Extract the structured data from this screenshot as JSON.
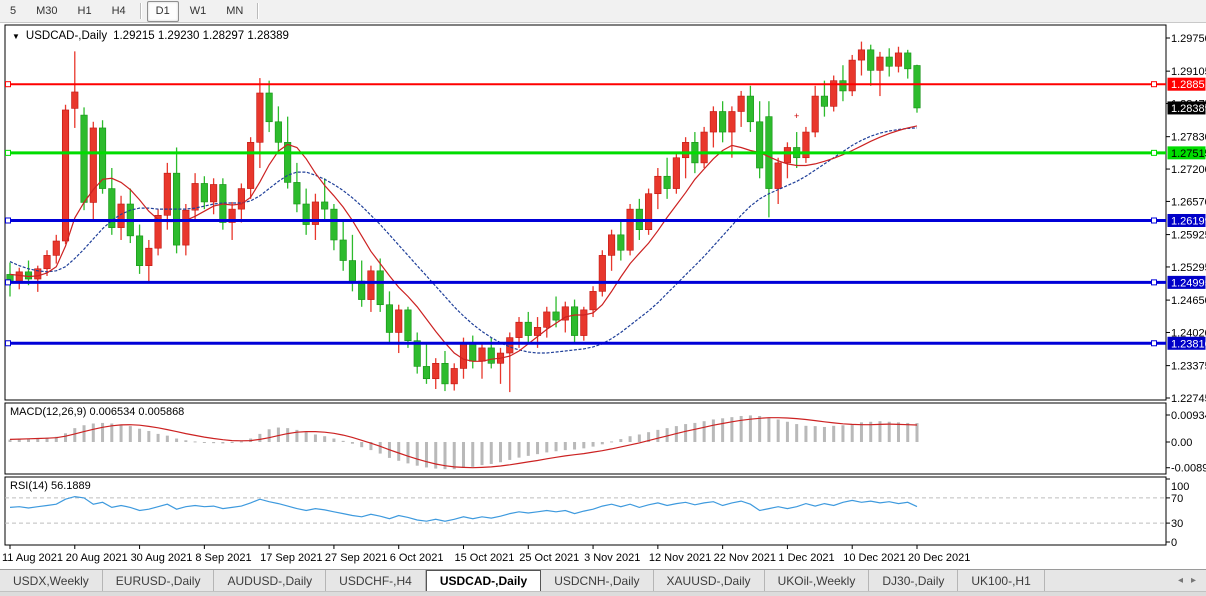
{
  "toolbar": {
    "timeframes": [
      {
        "label": "5"
      },
      {
        "label": "M30"
      },
      {
        "label": "H1"
      },
      {
        "label": "H4"
      },
      {
        "label": "D1"
      },
      {
        "label": "W1"
      },
      {
        "label": "MN"
      }
    ],
    "active": "D1"
  },
  "chart": {
    "symbol_label": "USDCAD-,Daily",
    "ohlc_label": "1.29215 1.29230 1.28297 1.28389",
    "dropdown_glyph": "▼"
  },
  "indicators": {
    "macd_name": "MACD(12,26,9)",
    "macd_values": "0.006534 0.005868",
    "rsi_name": "RSI(14)",
    "rsi_value": "56.1889"
  },
  "tabs": {
    "items": [
      "USDX,Weekly",
      "EURUSD-,Daily",
      "AUDUSD-,Daily",
      "USDCHF-,H4",
      "USDCAD-,Daily",
      "USDCNH-,Daily",
      "XAUUSD-,Daily",
      "UKOil-,Weekly",
      "DJ30-,Daily",
      "UK100-,H1"
    ],
    "active_index": 4,
    "scroll_left_glyph": "◂",
    "scroll_right_glyph": "▸"
  },
  "chart_data": {
    "type": "candlestick",
    "symbol": "USDCAD",
    "timeframe": "Daily",
    "colors": {
      "bull": "#e8372c",
      "bull_stroke": "#c01510",
      "bear": "#2dbb2d",
      "bear_stroke": "#149114",
      "ma_fast": "#cc2222",
      "ma_slow": "#1f3f99",
      "macd_hist": "#b9b9b9",
      "macd_signal": "#cc2222",
      "rsi_line": "#3e9ade",
      "level_dash": "#bdbdbd",
      "panel_border": "#000000"
    },
    "price_axis": {
      "labels": [
        "1.29750",
        "1.29105",
        "1.28475",
        "1.27830",
        "1.27200",
        "1.26570",
        "1.25925",
        "1.25295",
        "1.24650",
        "1.24020",
        "1.23375",
        "1.22745"
      ],
      "values": [
        1.2975,
        1.29105,
        1.28475,
        1.2783,
        1.272,
        1.2657,
        1.25925,
        1.25295,
        1.2465,
        1.2402,
        1.23375,
        1.22745
      ]
    },
    "hlines": [
      {
        "price": 1.28851,
        "label": "1.28851",
        "color": "#ff0000",
        "bg": "#ff0000",
        "fg": "#ffffff",
        "width": 2
      },
      {
        "price": 1.27515,
        "label": "1.27515",
        "color": "#00dd00",
        "bg": "#00dd00",
        "fg": "#000000",
        "width": 3
      },
      {
        "price": 1.26199,
        "label": "1.26199",
        "color": "#0000d8",
        "bg": "#0000c8",
        "fg": "#ffffff",
        "width": 3
      },
      {
        "price": 1.24995,
        "label": "1.24995",
        "color": "#0000d8",
        "bg": "#0000c8",
        "fg": "#ffffff",
        "width": 3
      },
      {
        "price": 1.2381,
        "label": "1.23810",
        "color": "#0000d8",
        "bg": "#0000c8",
        "fg": "#ffffff",
        "width": 3
      }
    ],
    "current_price": {
      "label": "1.28389",
      "price": 1.28389,
      "bg": "#000000",
      "fg": "#ffffff"
    },
    "marker": {
      "glyph": "+",
      "candle_index": 85,
      "price": 1.2823,
      "color": "#cc0000"
    },
    "dates": {
      "labels": [
        "11 Aug 2021",
        "20 Aug 2021",
        "30 Aug 2021",
        "8 Sep 2021",
        "17 Sep 2021",
        "27 Sep 2021",
        "6 Oct 2021",
        "15 Oct 2021",
        "25 Oct 2021",
        "3 Nov 2021",
        "12 Nov 2021",
        "22 Nov 2021",
        "1 Dec 2021",
        "10 Dec 2021",
        "20 Dec 2021"
      ],
      "tick_interval": 7
    },
    "candles": [
      [
        1.2515,
        1.2538,
        1.2472,
        1.2502
      ],
      [
        1.2502,
        1.2528,
        1.2486,
        1.252
      ],
      [
        1.252,
        1.2542,
        1.2494,
        1.2506
      ],
      [
        1.2506,
        1.2532,
        1.2481,
        1.2526
      ],
      [
        1.2526,
        1.2562,
        1.2512,
        1.2552
      ],
      [
        1.2552,
        1.2592,
        1.2536,
        1.258
      ],
      [
        1.258,
        1.2845,
        1.2574,
        1.2835
      ],
      [
        1.2838,
        1.2949,
        1.28,
        1.287
      ],
      [
        1.2825,
        1.284,
        1.264,
        1.2655
      ],
      [
        1.2655,
        1.2812,
        1.2622,
        1.28
      ],
      [
        1.28,
        1.2815,
        1.2672,
        1.2682
      ],
      [
        1.2682,
        1.2722,
        1.2592,
        1.2606
      ],
      [
        1.2606,
        1.2668,
        1.2582,
        1.2652
      ],
      [
        1.2652,
        1.2682,
        1.2576,
        1.259
      ],
      [
        1.259,
        1.2612,
        1.2516,
        1.2532
      ],
      [
        1.2532,
        1.2582,
        1.2502,
        1.2566
      ],
      [
        1.2566,
        1.2642,
        1.2552,
        1.263
      ],
      [
        1.263,
        1.2732,
        1.2602,
        1.2712
      ],
      [
        1.2712,
        1.2762,
        1.2556,
        1.2572
      ],
      [
        1.2572,
        1.2652,
        1.2552,
        1.264
      ],
      [
        1.264,
        1.2712,
        1.2622,
        1.2692
      ],
      [
        1.2692,
        1.2706,
        1.2642,
        1.2656
      ],
      [
        1.2656,
        1.2702,
        1.2632,
        1.269
      ],
      [
        1.269,
        1.2702,
        1.2602,
        1.2616
      ],
      [
        1.2616,
        1.2656,
        1.2582,
        1.2642
      ],
      [
        1.2642,
        1.2692,
        1.2616,
        1.2682
      ],
      [
        1.2682,
        1.2782,
        1.2662,
        1.2772
      ],
      [
        1.2772,
        1.2897,
        1.2722,
        1.2868
      ],
      [
        1.2868,
        1.2892,
        1.2792,
        1.2812
      ],
      [
        1.2812,
        1.2842,
        1.2752,
        1.2772
      ],
      [
        1.2772,
        1.2822,
        1.2682,
        1.2694
      ],
      [
        1.2694,
        1.2732,
        1.2636,
        1.2652
      ],
      [
        1.2652,
        1.2682,
        1.2592,
        1.2612
      ],
      [
        1.2612,
        1.2672,
        1.2582,
        1.2656
      ],
      [
        1.2656,
        1.2702,
        1.2622,
        1.2642
      ],
      [
        1.2642,
        1.2652,
        1.2562,
        1.2582
      ],
      [
        1.2582,
        1.2622,
        1.2522,
        1.2542
      ],
      [
        1.2542,
        1.2592,
        1.2482,
        1.2502
      ],
      [
        1.2502,
        1.2542,
        1.2452,
        1.2466
      ],
      [
        1.2466,
        1.2532,
        1.2442,
        1.2522
      ],
      [
        1.2522,
        1.2546,
        1.2442,
        1.2456
      ],
      [
        1.2456,
        1.2482,
        1.2382,
        1.2402
      ],
      [
        1.2402,
        1.2456,
        1.2362,
        1.2446
      ],
      [
        1.2446,
        1.2452,
        1.2372,
        1.2386
      ],
      [
        1.2386,
        1.2402,
        1.2322,
        1.2336
      ],
      [
        1.2336,
        1.2382,
        1.2302,
        1.2312
      ],
      [
        1.2312,
        1.2352,
        1.2292,
        1.2342
      ],
      [
        1.2342,
        1.2366,
        1.2288,
        1.2302
      ],
      [
        1.2302,
        1.2342,
        1.2289,
        1.2332
      ],
      [
        1.2332,
        1.2392,
        1.2312,
        1.2382
      ],
      [
        1.2382,
        1.2396,
        1.2332,
        1.2346
      ],
      [
        1.2346,
        1.2382,
        1.2312,
        1.2372
      ],
      [
        1.2372,
        1.2392,
        1.2332,
        1.2342
      ],
      [
        1.2342,
        1.2372,
        1.2302,
        1.2362
      ],
      [
        1.2362,
        1.2402,
        1.2286,
        1.2392
      ],
      [
        1.2392,
        1.2432,
        1.2372,
        1.2422
      ],
      [
        1.2422,
        1.2442,
        1.2382,
        1.2396
      ],
      [
        1.2396,
        1.2432,
        1.2372,
        1.2412
      ],
      [
        1.2412,
        1.2452,
        1.2392,
        1.2442
      ],
      [
        1.2442,
        1.2472,
        1.2412,
        1.2426
      ],
      [
        1.2426,
        1.2462,
        1.2402,
        1.2452
      ],
      [
        1.2452,
        1.2466,
        1.2382,
        1.2396
      ],
      [
        1.2396,
        1.2452,
        1.2386,
        1.2446
      ],
      [
        1.2446,
        1.2492,
        1.2432,
        1.2482
      ],
      [
        1.2482,
        1.2562,
        1.2472,
        1.2552
      ],
      [
        1.2552,
        1.2602,
        1.2522,
        1.2592
      ],
      [
        1.2592,
        1.2622,
        1.2542,
        1.2562
      ],
      [
        1.2562,
        1.2652,
        1.2552,
        1.2642
      ],
      [
        1.2642,
        1.2662,
        1.2582,
        1.2602
      ],
      [
        1.2602,
        1.2682,
        1.2592,
        1.2672
      ],
      [
        1.2672,
        1.2722,
        1.2642,
        1.2706
      ],
      [
        1.2706,
        1.2742,
        1.2662,
        1.2682
      ],
      [
        1.2682,
        1.2752,
        1.2672,
        1.2742
      ],
      [
        1.2742,
        1.2782,
        1.2702,
        1.2772
      ],
      [
        1.2772,
        1.2792,
        1.2712,
        1.2732
      ],
      [
        1.2732,
        1.2802,
        1.2722,
        1.2792
      ],
      [
        1.2792,
        1.2842,
        1.2762,
        1.2832
      ],
      [
        1.2832,
        1.2852,
        1.2772,
        1.2792
      ],
      [
        1.2792,
        1.2842,
        1.2742,
        1.2832
      ],
      [
        1.2832,
        1.2872,
        1.2802,
        1.2862
      ],
      [
        1.2862,
        1.2882,
        1.2792,
        1.2812
      ],
      [
        1.2812,
        1.2852,
        1.2702,
        1.2722
      ],
      [
        1.2822,
        1.2852,
        1.2626,
        1.2682
      ],
      [
        1.2682,
        1.2742,
        1.2652,
        1.2732
      ],
      [
        1.2732,
        1.2772,
        1.2702,
        1.2762
      ],
      [
        1.2762,
        1.2792,
        1.2722,
        1.2742
      ],
      [
        1.2742,
        1.2802,
        1.2732,
        1.2792
      ],
      [
        1.2792,
        1.2882,
        1.2782,
        1.2862
      ],
      [
        1.2862,
        1.2892,
        1.2822,
        1.2842
      ],
      [
        1.2842,
        1.2902,
        1.2832,
        1.2892
      ],
      [
        1.2892,
        1.2922,
        1.2852,
        1.2872
      ],
      [
        1.2872,
        1.2942,
        1.2862,
        1.2932
      ],
      [
        1.2932,
        1.2968,
        1.2902,
        1.2952
      ],
      [
        1.2952,
        1.2962,
        1.2882,
        1.2912
      ],
      [
        1.2912,
        1.2948,
        1.2862,
        1.2938
      ],
      [
        1.2938,
        1.2955,
        1.29,
        1.292
      ],
      [
        1.292,
        1.2958,
        1.2908,
        1.2946
      ],
      [
        1.2946,
        1.2952,
        1.2896,
        1.2915
      ],
      [
        1.29215,
        1.2923,
        1.28297,
        1.28389
      ]
    ],
    "ma_fast": [
      1.2515,
      1.2513,
      1.2511,
      1.2512,
      1.2518,
      1.253,
      1.257,
      1.2625,
      1.2655,
      1.268,
      1.27,
      1.2702,
      1.2694,
      1.268,
      1.266,
      1.2638,
      1.2622,
      1.2618,
      1.2618,
      1.262,
      1.2628,
      1.2638,
      1.2648,
      1.2652,
      1.265,
      1.2652,
      1.2665,
      1.2695,
      1.2728,
      1.2755,
      1.2768,
      1.2762,
      1.274,
      1.2712,
      1.2688,
      1.2668,
      1.2646,
      1.262,
      1.259,
      1.256,
      1.2536,
      1.2512,
      1.249,
      1.2472,
      1.2452,
      1.2428,
      1.2404,
      1.2382,
      1.2362,
      1.235,
      1.2346,
      1.2346,
      1.235,
      1.2352,
      1.2356,
      1.2366,
      1.238,
      1.2394,
      1.2408,
      1.242,
      1.2432,
      1.2436,
      1.2436,
      1.244,
      1.2456,
      1.2482,
      1.251,
      1.2536,
      1.2556,
      1.2576,
      1.26,
      1.2626,
      1.265,
      1.2674,
      1.27,
      1.272,
      1.274,
      1.2756,
      1.2766,
      1.2762,
      1.2756,
      1.2752,
      1.2744,
      1.2736,
      1.273,
      1.2727,
      1.2727,
      1.273,
      1.2735,
      1.2741,
      1.2748,
      1.2756,
      1.2765,
      1.2774,
      1.2782,
      1.2789,
      1.2795,
      1.28,
      1.2804
    ],
    "ma_slow": [
      1.254,
      1.2532,
      1.2526,
      1.2522,
      1.252,
      1.2522,
      1.253,
      1.2546,
      1.2564,
      1.2584,
      1.2604,
      1.262,
      1.2632,
      1.264,
      1.2644,
      1.2644,
      1.2642,
      1.2642,
      1.2642,
      1.2642,
      1.2644,
      1.2648,
      1.2652,
      1.2654,
      1.2654,
      1.2654,
      1.2658,
      1.2668,
      1.2682,
      1.2696,
      1.2708,
      1.2714,
      1.2714,
      1.2708,
      1.27,
      1.269,
      1.2678,
      1.2664,
      1.2648,
      1.263,
      1.2612,
      1.2592,
      1.2572,
      1.2552,
      1.2532,
      1.2512,
      1.2492,
      1.2472,
      1.2452,
      1.2434,
      1.2418,
      1.2404,
      1.2392,
      1.2382,
      1.2374,
      1.2368,
      1.2364,
      1.2362,
      1.2362,
      1.2364,
      1.2366,
      1.2368,
      1.237,
      1.2374,
      1.238,
      1.239,
      1.2402,
      1.2416,
      1.243,
      1.2444,
      1.246,
      1.2478,
      1.2496,
      1.2514,
      1.2532,
      1.255,
      1.257,
      1.259,
      1.261,
      1.263,
      1.2648,
      1.2662,
      1.2672,
      1.268,
      1.2688,
      1.2696,
      1.2706,
      1.2718,
      1.273,
      1.2742,
      1.2754,
      1.2766,
      1.2776,
      1.2784,
      1.279,
      1.2794,
      1.2797,
      1.2799,
      1.28
    ],
    "macd": {
      "axis_labels": [
        "0.009345",
        "0.00",
        "-0.008905"
      ],
      "axis_values": [
        0.009345,
        0,
        -0.008905
      ],
      "histogram": [
        0.0008,
        0.001,
        0.0012,
        0.0013,
        0.0015,
        0.0018,
        0.003,
        0.0048,
        0.0058,
        0.0064,
        0.0066,
        0.0064,
        0.006,
        0.0055,
        0.0046,
        0.0038,
        0.0028,
        0.0022,
        0.0012,
        0.0006,
        0.0002,
        -0.0002,
        -0.0004,
        -0.0005,
        -0.0003,
        0.0002,
        0.0012,
        0.0028,
        0.0044,
        0.005,
        0.0048,
        0.0042,
        0.0034,
        0.0026,
        0.002,
        0.0012,
        0.0004,
        -0.0006,
        -0.0018,
        -0.0028,
        -0.004,
        -0.0055,
        -0.0065,
        -0.0074,
        -0.0082,
        -0.0088,
        -0.0092,
        -0.0094,
        -0.0094,
        -0.009,
        -0.0086,
        -0.008,
        -0.0076,
        -0.007,
        -0.0062,
        -0.0054,
        -0.0048,
        -0.0042,
        -0.0036,
        -0.0032,
        -0.0028,
        -0.0026,
        -0.0022,
        -0.0016,
        -0.0008,
        0.0002,
        0.001,
        0.002,
        0.0026,
        0.0034,
        0.0042,
        0.0048,
        0.0055,
        0.0062,
        0.0066,
        0.0072,
        0.0078,
        0.0082,
        0.0086,
        0.009,
        0.0092,
        0.009,
        0.0085,
        0.0078,
        0.007,
        0.0062,
        0.0056,
        0.0055,
        0.0052,
        0.0056,
        0.0058,
        0.0062,
        0.0068,
        0.007,
        0.0072,
        0.007,
        0.0068,
        0.0066,
        0.006534
      ],
      "signal": [
        0.0009,
        0.001,
        0.0011,
        0.0012,
        0.0013,
        0.0015,
        0.002,
        0.0028,
        0.0036,
        0.0044,
        0.0051,
        0.0056,
        0.0059,
        0.006,
        0.0058,
        0.0054,
        0.0049,
        0.0043,
        0.0036,
        0.0029,
        0.0023,
        0.0017,
        0.0012,
        0.0008,
        0.0005,
        0.0004,
        0.0005,
        0.0009,
        0.0015,
        0.0022,
        0.0029,
        0.0034,
        0.0036,
        0.0036,
        0.0034,
        0.003,
        0.0024,
        0.0016,
        0.0006,
        -0.0004,
        -0.0015,
        -0.0027,
        -0.0038,
        -0.0049,
        -0.0059,
        -0.0068,
        -0.0076,
        -0.0082,
        -0.0086,
        -0.0088,
        -0.0089,
        -0.0088,
        -0.0086,
        -0.0083,
        -0.0079,
        -0.0074,
        -0.0069,
        -0.0064,
        -0.0058,
        -0.0053,
        -0.0048,
        -0.0044,
        -0.004,
        -0.0035,
        -0.003,
        -0.0024,
        -0.0017,
        -0.001,
        -0.0003,
        0.0005,
        0.0013,
        0.0021,
        0.0029,
        0.0037,
        0.0044,
        0.0051,
        0.0058,
        0.0064,
        0.007,
        0.0075,
        0.0079,
        0.0082,
        0.0084,
        0.0084,
        0.0083,
        0.0081,
        0.0078,
        0.0074,
        0.007,
        0.0066,
        0.0063,
        0.0061,
        0.006,
        0.006,
        0.0061,
        0.0062,
        0.0061,
        0.006,
        0.005868
      ]
    },
    "rsi": {
      "axis_labels": [
        "100",
        "70",
        "30",
        "0"
      ],
      "axis_values": [
        100,
        70,
        30,
        0
      ],
      "levels": [
        70,
        30
      ],
      "values": [
        55,
        56,
        54,
        56,
        58,
        60,
        68,
        72,
        70,
        60,
        63,
        55,
        58,
        55,
        50,
        52,
        56,
        60,
        52,
        56,
        58,
        56,
        57,
        53,
        55,
        57,
        62,
        68,
        64,
        61,
        57,
        53,
        50,
        53,
        51,
        48,
        45,
        42,
        40,
        44,
        41,
        37,
        42,
        39,
        35,
        33,
        36,
        33,
        36,
        40,
        37,
        40,
        38,
        41,
        45,
        48,
        46,
        48,
        50,
        48,
        50,
        45,
        49,
        52,
        57,
        60,
        56,
        60,
        55,
        59,
        62,
        58,
        61,
        63,
        59,
        62,
        64,
        58,
        62,
        65,
        60,
        50,
        53,
        56,
        53,
        56,
        61,
        57,
        61,
        58,
        63,
        66,
        63,
        65,
        62,
        64,
        61,
        63,
        56.2
      ]
    }
  }
}
